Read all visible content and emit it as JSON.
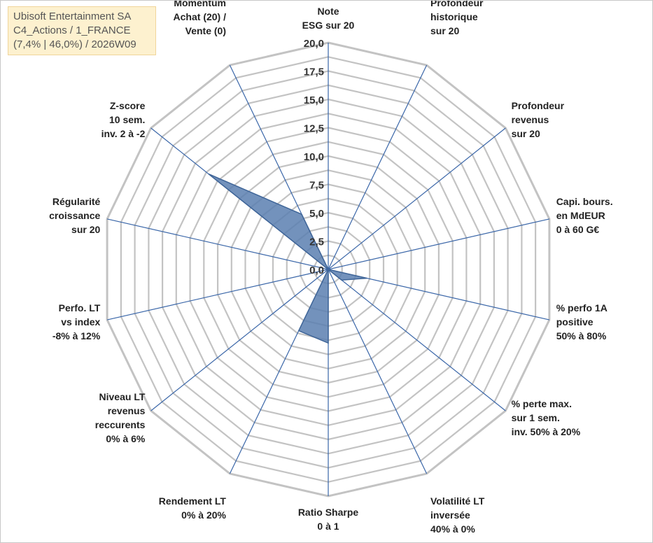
{
  "title_box": {
    "line1": "Ubisoft Entertainment SA",
    "line2": "C4_Actions / 1_FRANCE",
    "line3": "(7,4% | 46,0%) / 2026W09"
  },
  "chart_data": {
    "type": "radar",
    "axes": [
      {
        "name": "note-esg",
        "lines": [
          "Note",
          "ESG sur 20"
        ]
      },
      {
        "name": "profondeur-historique",
        "lines": [
          "Profondeur",
          "historique",
          "sur 20"
        ]
      },
      {
        "name": "profondeur-revenus",
        "lines": [
          "Profondeur",
          "revenus",
          "sur 20"
        ]
      },
      {
        "name": "capi-bours",
        "lines": [
          "Capi. bours.",
          "en MdEUR",
          "0 à 60 G€"
        ]
      },
      {
        "name": "perfo-1a",
        "lines": [
          "% perfo 1A",
          "positive",
          "50% à 80%"
        ]
      },
      {
        "name": "perte-max",
        "lines": [
          "% perte max.",
          "sur 1 sem.",
          "inv. 50% à 20%"
        ]
      },
      {
        "name": "volatilite-lt",
        "lines": [
          "Volatilité LT",
          "inversée",
          "40% à 0%"
        ]
      },
      {
        "name": "ratio-sharpe",
        "lines": [
          "Ratio Sharpe",
          "0 à 1"
        ]
      },
      {
        "name": "rendement-lt",
        "lines": [
          "Rendement LT",
          "0% à 20%"
        ]
      },
      {
        "name": "niveau-lt-revenus",
        "lines": [
          "Niveau LT",
          "revenus",
          "reccurents",
          "0% à 6%"
        ]
      },
      {
        "name": "perfo-lt-index",
        "lines": [
          "Perfo. LT",
          "vs index",
          "-8% à 12%"
        ]
      },
      {
        "name": "regularite-croissance",
        "lines": [
          "Régularité",
          "croissance",
          "sur 20"
        ]
      },
      {
        "name": "z-score",
        "lines": [
          "Z-score",
          "10 sem.",
          "inv. 2 à -2"
        ]
      },
      {
        "name": "momentum",
        "lines": [
          "Momentum",
          "Achat (20) /",
          "Vente (0)"
        ]
      }
    ],
    "series": [
      {
        "name": "Ubisoft Entertainment SA",
        "values": [
          0,
          0,
          0,
          0,
          3.5,
          1.5,
          0,
          6.5,
          6.0,
          0,
          0,
          0,
          13.5,
          5.4
        ]
      }
    ],
    "r_ticks": [
      "0,0",
      "2,5",
      "5,0",
      "7,5",
      "10,0",
      "12,5",
      "15,0",
      "17,5",
      "20,0"
    ],
    "r_range": [
      0,
      20
    ],
    "colors": {
      "fill": "#5b7fb0",
      "stroke": "#3f6598",
      "grid": "#c3c3c3",
      "spoke": "#3a66a8"
    }
  }
}
